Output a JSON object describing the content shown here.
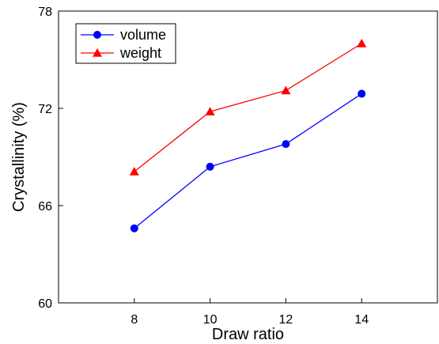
{
  "chart_data": {
    "type": "line",
    "title": "",
    "xlabel": "Draw ratio",
    "ylabel": "Crystallinity (%)",
    "x": [
      8,
      10,
      12,
      14
    ],
    "xticks": [
      8,
      10,
      12,
      14
    ],
    "xlim": [
      6,
      16
    ],
    "yticks": [
      60,
      66,
      72,
      78
    ],
    "ylim": [
      60,
      78
    ],
    "grid": false,
    "legend_position": "top-left",
    "series": [
      {
        "name": "volume",
        "values": [
          64.6,
          68.4,
          69.8,
          72.9
        ],
        "color": "#0000ff",
        "marker": "circle"
      },
      {
        "name": "weight",
        "values": [
          68.1,
          71.8,
          73.1,
          76.0
        ],
        "color": "#ff0000",
        "marker": "triangle"
      }
    ]
  }
}
